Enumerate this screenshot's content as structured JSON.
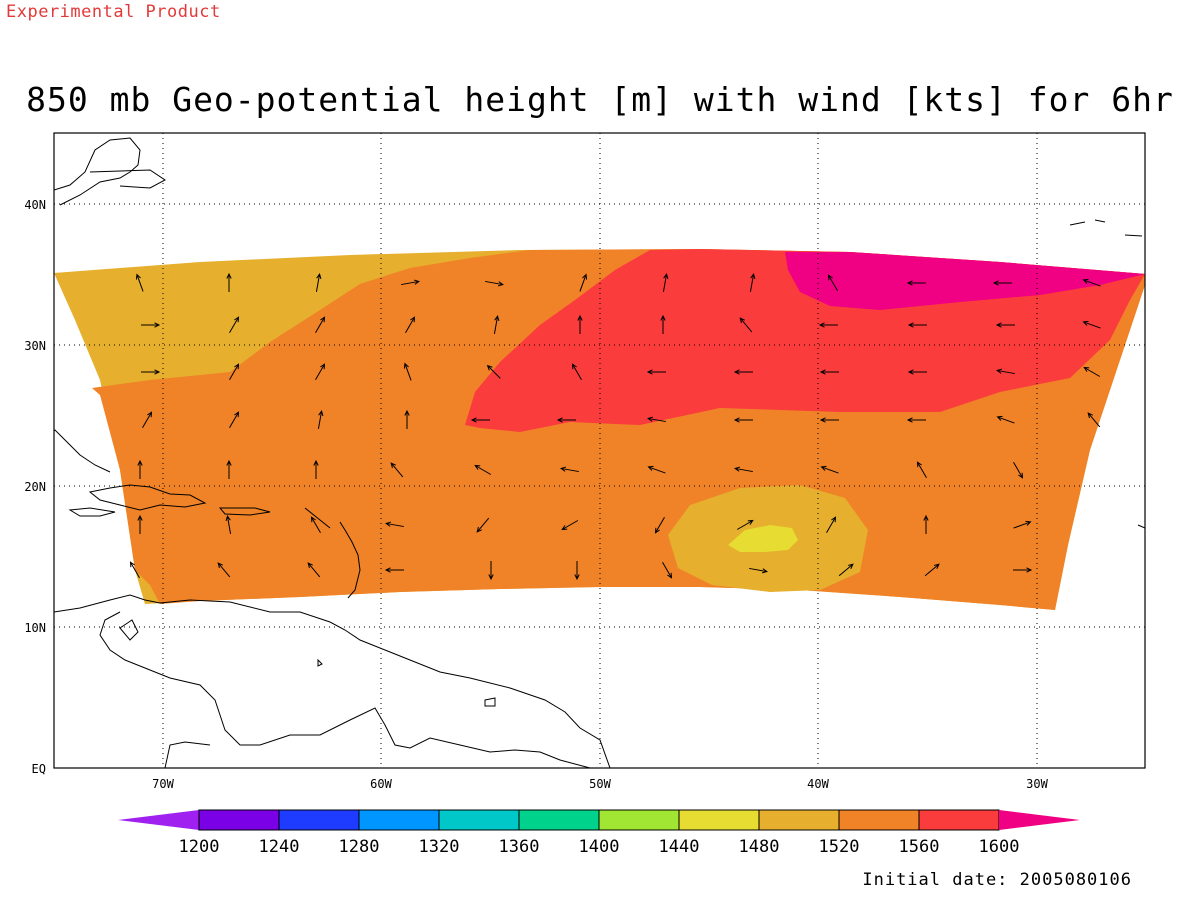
{
  "header": {
    "product_label": "Experimental Product",
    "title": "850 mb Geo-potential height [m] with wind [kts] for 6hr"
  },
  "footer": {
    "initial_date": "Initial date: 2005080106"
  },
  "map": {
    "lon_ticks": [
      "70W",
      "60W",
      "50W",
      "40W",
      "30W"
    ],
    "lat_ticks": [
      "EQ",
      "10N",
      "20N",
      "30N",
      "40N"
    ],
    "grid": "dotted"
  },
  "legend": {
    "labels": [
      "1200",
      "1240",
      "1280",
      "1320",
      "1360",
      "1400",
      "1440",
      "1480",
      "1520",
      "1560",
      "1600"
    ],
    "colors": [
      "#a020f0",
      "#7a00e6",
      "#1e3cff",
      "#0096ff",
      "#00c8c8",
      "#00d28c",
      "#a0e632",
      "#e6dc32",
      "#e6af2d",
      "#f08228",
      "#fa3c3c",
      "#f00082"
    ]
  }
}
